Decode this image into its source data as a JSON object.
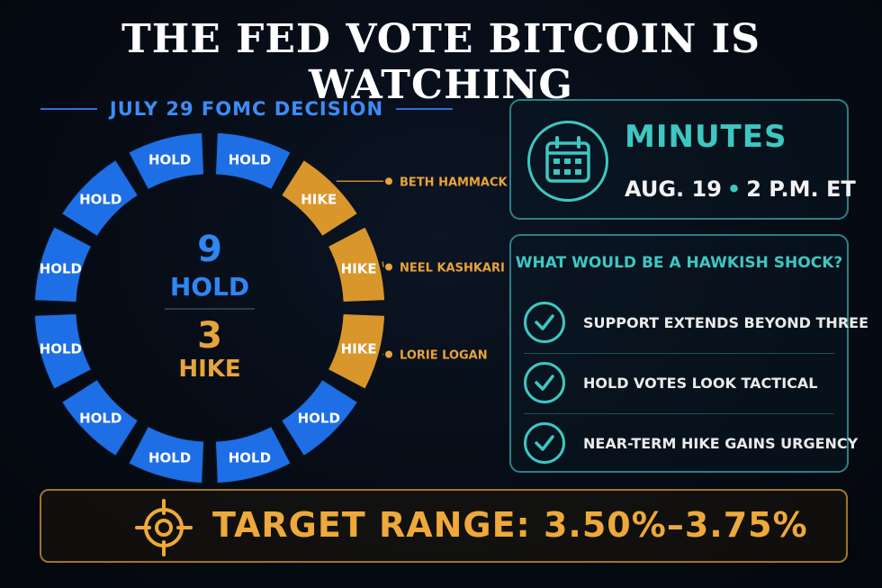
{
  "title": "THE FED VOTE BITCOIN IS WATCHING",
  "wheel": {
    "heading": "JULY 29 FOMC DECISION",
    "hold_count": "9",
    "hold_label": "HOLD",
    "hike_count": "3",
    "hike_label": "HIKE",
    "segments": [
      {
        "label": "HOLD",
        "vote": "hold"
      },
      {
        "label": "HIKE",
        "vote": "hike"
      },
      {
        "label": "HIKE",
        "vote": "hike"
      },
      {
        "label": "HIKE",
        "vote": "hike"
      },
      {
        "label": "HOLD",
        "vote": "hold"
      },
      {
        "label": "HOLD",
        "vote": "hold"
      },
      {
        "label": "HOLD",
        "vote": "hold"
      },
      {
        "label": "HOLD",
        "vote": "hold"
      },
      {
        "label": "HOLD",
        "vote": "hold"
      },
      {
        "label": "HOLD",
        "vote": "hold"
      },
      {
        "label": "HOLD",
        "vote": "hold"
      },
      {
        "label": "HOLD",
        "vote": "hold"
      }
    ],
    "hikers": [
      "BETH HAMMACK",
      "NEEL KASHKARI",
      "LORIE LOGAN"
    ],
    "colors": {
      "hold": "#1e6fe6",
      "hike": "#d9962a",
      "hold_text": "#2f86f5",
      "hike_text": "#e8a43a"
    }
  },
  "minutes": {
    "icon": "calendar-icon",
    "title": "MINUTES",
    "date": "AUG. 19",
    "time": "2 P.M. ET",
    "separator": "•"
  },
  "shock": {
    "title": "WHAT WOULD BE A HAWKISH SHOCK?",
    "items": [
      {
        "label": "SUPPORT EXTENDS BEYOND THREE",
        "icon": "check-icon"
      },
      {
        "label": "HOLD VOTES LOOK TACTICAL",
        "icon": "check-icon"
      },
      {
        "label": "NEAR-TERM HIKE GAINS URGENCY",
        "icon": "check-icon"
      }
    ]
  },
  "target": {
    "icon": "crosshair-icon",
    "text": "TARGET RANGE: 3.50%–3.75%"
  },
  "accent_colors": {
    "teal": "#3ec7c2",
    "gold": "#eea93a",
    "blue": "#3d8cf5"
  }
}
